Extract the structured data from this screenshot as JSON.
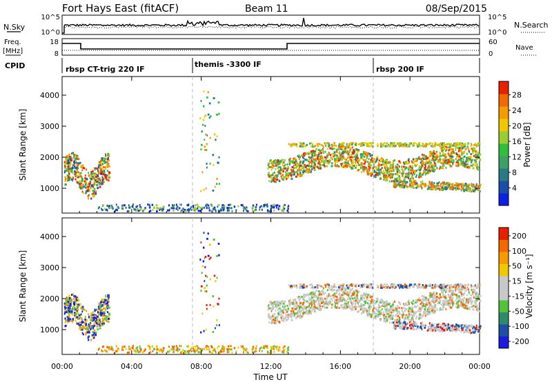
{
  "header": {
    "station": "Fort Hays East (fitACF)",
    "beam": "Beam 11",
    "date": "08/Sep/2015"
  },
  "noise_panel": {
    "left_label": "N.Sky",
    "right_label": "N.Search",
    "left_ticks": [
      "10^5",
      "10^0"
    ],
    "right_ticks": [
      "10^5",
      "10^0"
    ]
  },
  "freq_panel": {
    "left_label_1": "Freq.",
    "left_label_2": "[MHz]",
    "right_label": "Nave",
    "left_ticks": [
      "18",
      "8"
    ],
    "right_ticks": [
      "60",
      "0"
    ]
  },
  "cpid": {
    "label": "CPID",
    "segments": [
      {
        "name": "rbsp CT-trig 220 IF",
        "start_hour": 0
      },
      {
        "name": "themis -3300 IF",
        "start_hour": 7.5
      },
      {
        "name": "rbsp 200 IF",
        "start_hour": 18.0
      }
    ]
  },
  "chart_data": [
    {
      "type": "heatmap",
      "panel": "power",
      "ylabel": "Slant Range [km]",
      "xlabel": "",
      "xlim_hours": [
        0,
        24
      ],
      "ylim": [
        200,
        4600
      ],
      "yticks": [
        "1000",
        "2000",
        "3000",
        "4000"
      ],
      "colorbar": {
        "label": "Power [dB]",
        "ticks": [
          "4",
          "8",
          "12",
          "16",
          "20",
          "24",
          "28"
        ],
        "colors": [
          "#0b1fe6",
          "#1a4fa8",
          "#2a7a84",
          "#3ea068",
          "#2fbf3a",
          "#9acd32",
          "#f0c800",
          "#f79a00",
          "#f06a00",
          "#e82000"
        ]
      },
      "x_tick_labels": [
        "00:00",
        "04:00",
        "08:00",
        "12:00",
        "16:00",
        "20:00",
        "00:00"
      ]
    },
    {
      "type": "heatmap",
      "panel": "velocity",
      "ylabel": "Slant Range [km]",
      "xlabel": "Time UT",
      "xlim_hours": [
        0,
        24
      ],
      "ylim": [
        200,
        4600
      ],
      "yticks": [
        "1000",
        "2000",
        "3000",
        "4000"
      ],
      "colorbar": {
        "label": "Velocity [m s⁻¹]",
        "ticks": [
          "200",
          "100",
          "50",
          "15",
          "-15",
          "-50",
          "-100",
          "-200"
        ],
        "colors": [
          "#1a1ae0",
          "#1f4fa5",
          "#2f8a6a",
          "#53c23a",
          "#c8c8c8",
          "#c8c8c8",
          "#f0c800",
          "#f79a00",
          "#f06a00",
          "#e82000"
        ]
      },
      "x_tick_labels": [
        "00:00",
        "04:00",
        "08:00",
        "12:00",
        "16:00",
        "20:00",
        "00:00"
      ]
    }
  ]
}
